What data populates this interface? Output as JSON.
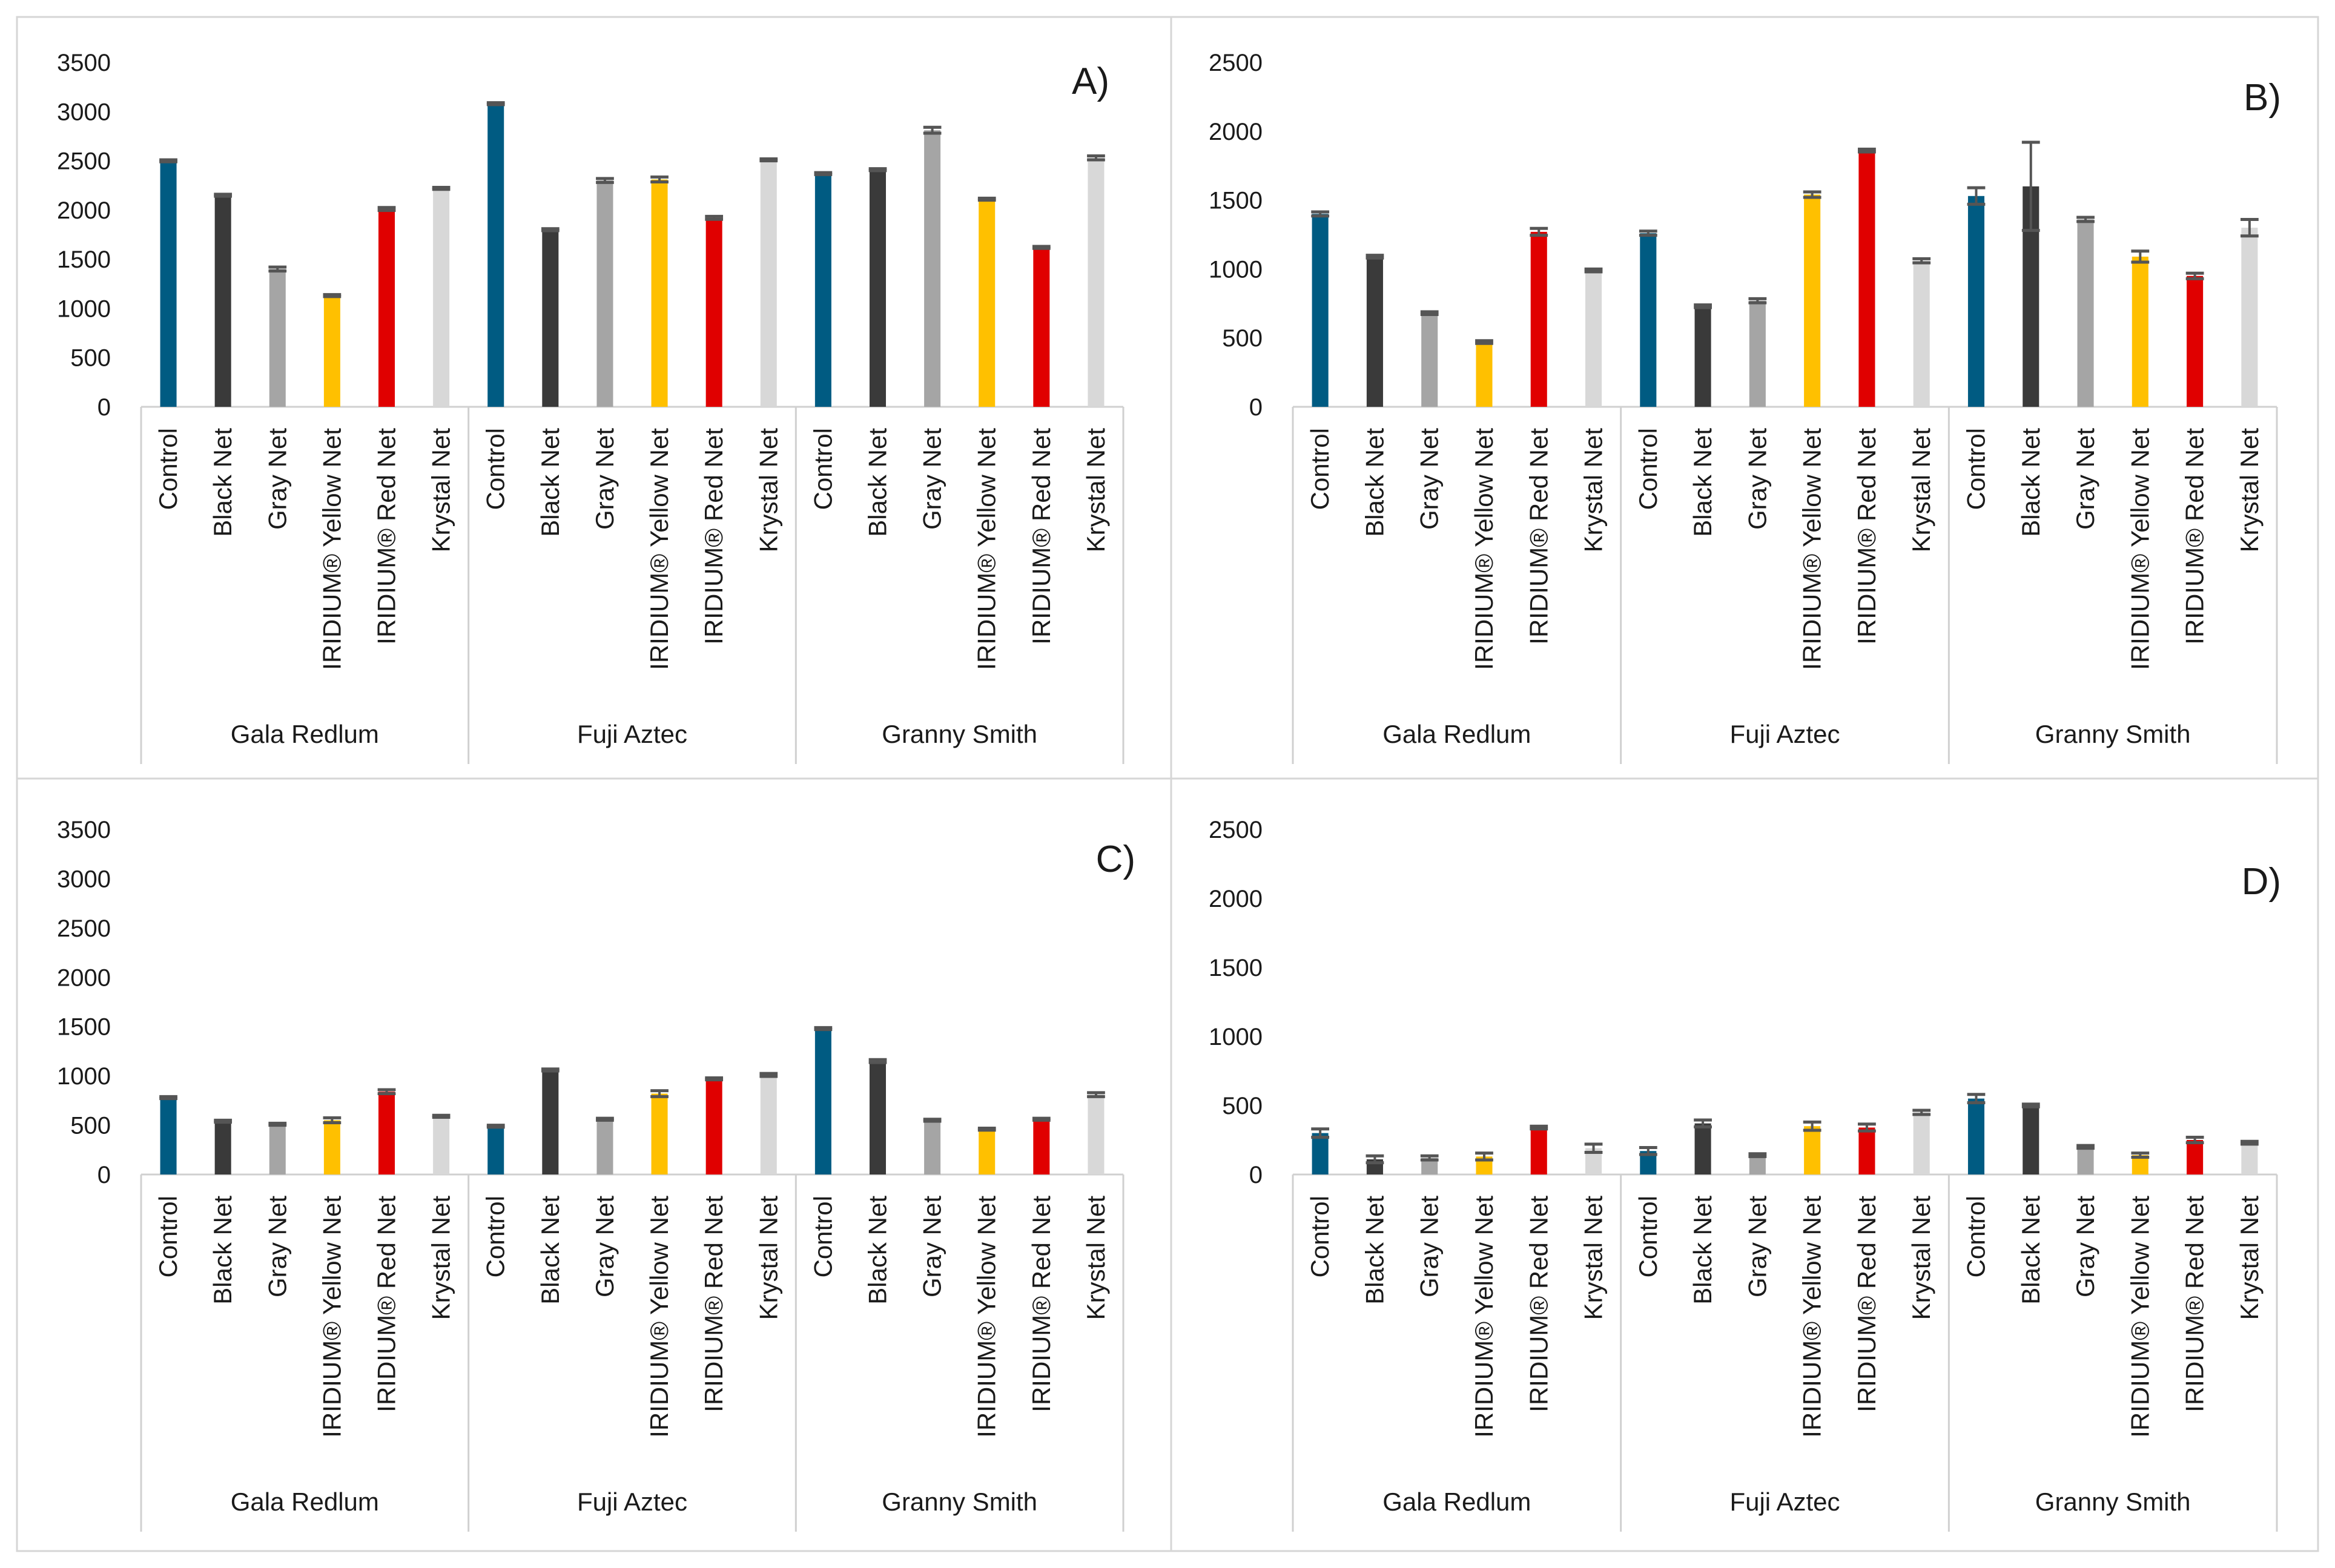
{
  "chart_data": [
    {
      "type": "bar",
      "panel_label": "A)",
      "ylim": [
        0,
        3500
      ],
      "yticks": [
        0,
        500,
        1000,
        1500,
        2000,
        2500,
        3000,
        3500
      ],
      "grid": false,
      "groups": [
        {
          "name": "Gala Redlum",
          "categories": [
            "Control",
            "Black Net",
            "Gray  Net",
            "IRIDIUM® Yellow Net",
            "IRIDIUM® Red Net",
            "Krystal Net"
          ],
          "values": [
            2500,
            2150,
            1400,
            1130,
            2010,
            2220
          ],
          "errors": [
            10,
            10,
            20,
            10,
            15,
            10
          ]
        },
        {
          "name": "Fuji Aztec",
          "categories": [
            "Control",
            "Black Net",
            "Gray  Net",
            "IRIDIUM® Yellow Net",
            "IRIDIUM® Red Net",
            "Krystal Net"
          ],
          "values": [
            3080,
            1800,
            2300,
            2310,
            1920,
            2510
          ],
          "errors": [
            10,
            10,
            20,
            25,
            15,
            10
          ]
        },
        {
          "name": "Granny Smith",
          "categories": [
            "Control",
            "Black Net",
            "Gray  Net",
            "IRIDIUM® Yellow Net",
            "IRIDIUM® Red Net",
            "Krystal Net"
          ],
          "values": [
            2370,
            2410,
            2810,
            2110,
            1620,
            2530
          ],
          "errors": [
            10,
            10,
            30,
            10,
            10,
            20
          ]
        }
      ]
    },
    {
      "type": "bar",
      "panel_label": "B)",
      "ylim": [
        0,
        2500
      ],
      "yticks": [
        0,
        500,
        1000,
        1500,
        2000,
        2500
      ],
      "grid": false,
      "groups": [
        {
          "name": "Gala Redlum",
          "categories": [
            "Control",
            "Black Net",
            "Gray  Net",
            "IRIDIUM® Yellow Net",
            "IRIDIUM® Red Net",
            "Krystal Net"
          ],
          "values": [
            1400,
            1090,
            680,
            470,
            1270,
            990
          ],
          "errors": [
            15,
            10,
            10,
            10,
            25,
            10
          ]
        },
        {
          "name": "Fuji Aztec",
          "categories": [
            "Control",
            "Black Net",
            "Gray  Net",
            "IRIDIUM® Yellow Net",
            "IRIDIUM® Red Net",
            "Krystal Net"
          ],
          "values": [
            1260,
            730,
            770,
            1540,
            1860,
            1060
          ],
          "errors": [
            15,
            10,
            15,
            20,
            10,
            15
          ]
        },
        {
          "name": "Granny Smith",
          "categories": [
            "Control",
            "Black Net",
            "Gray  Net",
            "IRIDIUM® Yellow Net",
            "IRIDIUM® Red Net",
            "Krystal Net"
          ],
          "values": [
            1530,
            1600,
            1360,
            1090,
            950,
            1300
          ],
          "errors": [
            60,
            320,
            15,
            40,
            20,
            60
          ]
        }
      ]
    },
    {
      "type": "bar",
      "panel_label": "C)",
      "ylim": [
        0,
        3500
      ],
      "yticks": [
        0,
        500,
        1000,
        1500,
        2000,
        2500,
        3000,
        3500
      ],
      "grid": false,
      "groups": [
        {
          "name": "Gala Redlum",
          "categories": [
            "Control",
            "Black Net",
            "Gray  Net",
            "IRIDIUM® Yellow Net",
            "IRIDIUM® Red Net",
            "Krystal Net"
          ],
          "values": [
            780,
            540,
            510,
            550,
            840,
            590
          ],
          "errors": [
            10,
            10,
            10,
            25,
            20,
            10
          ]
        },
        {
          "name": "Fuji Aztec",
          "categories": [
            "Control",
            "Black Net",
            "Gray  Net",
            "IRIDIUM® Yellow Net",
            "IRIDIUM® Red Net",
            "Krystal Net"
          ],
          "values": [
            490,
            1060,
            560,
            820,
            970,
            1010
          ],
          "errors": [
            10,
            10,
            10,
            30,
            10,
            15
          ]
        },
        {
          "name": "Granny Smith",
          "categories": [
            "Control",
            "Black Net",
            "Gray  Net",
            "IRIDIUM® Yellow Net",
            "IRIDIUM® Red Net",
            "Krystal Net"
          ],
          "values": [
            1480,
            1150,
            550,
            460,
            560,
            810
          ],
          "errors": [
            10,
            15,
            10,
            10,
            10,
            20
          ]
        }
      ]
    },
    {
      "type": "bar",
      "panel_label": "D)",
      "ylim": [
        0,
        2500
      ],
      "yticks": [
        0,
        500,
        1000,
        1500,
        2000,
        2500
      ],
      "grid": false,
      "groups": [
        {
          "name": "Gala Redlum",
          "categories": [
            "Control",
            "Black Net",
            "Gray  Net",
            "IRIDIUM® Yellow Net",
            "IRIDIUM® Red Net",
            "Krystal Net"
          ],
          "values": [
            300,
            110,
            120,
            130,
            340,
            190
          ],
          "errors": [
            30,
            25,
            15,
            25,
            10,
            30
          ]
        },
        {
          "name": "Fuji Aztec",
          "categories": [
            "Control",
            "Black Net",
            "Gray  Net",
            "IRIDIUM® Yellow Net",
            "IRIDIUM® Red Net",
            "Krystal Net"
          ],
          "values": [
            170,
            370,
            140,
            350,
            340,
            450
          ],
          "errors": [
            25,
            25,
            10,
            30,
            25,
            15
          ]
        },
        {
          "name": "Granny Smith",
          "categories": [
            "Control",
            "Black Net",
            "Gray  Net",
            "IRIDIUM® Yellow Net",
            "IRIDIUM® Red Net",
            "Krystal Net"
          ],
          "values": [
            550,
            500,
            200,
            140,
            250,
            230
          ],
          "errors": [
            30,
            10,
            10,
            15,
            20,
            10
          ]
        }
      ]
    }
  ],
  "colors": {
    "Control": "#005b82",
    "Black Net": "#3a3a3a",
    "Gray  Net": "#a5a5a5",
    "IRIDIUM® Yellow Net": "#ffc000",
    "IRIDIUM® Red Net": "#e00000",
    "Krystal Net": "#d8d8d8",
    "error_bar": "#555555",
    "axis": "#d0d0d0",
    "panel_border": "#d6d6d6"
  }
}
